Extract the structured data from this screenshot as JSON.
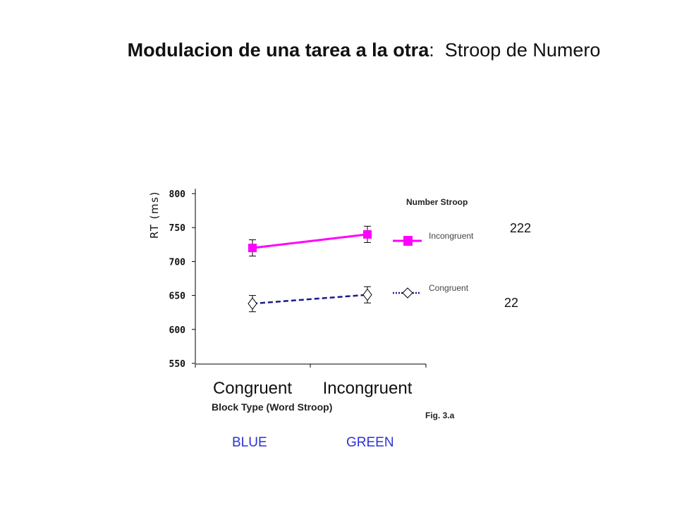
{
  "slide": {
    "title_bold": "Modulacion de una tarea a la otra",
    "title_colon": ":",
    "title_regular": "Stroop de Numero",
    "note_top": "222",
    "note_bottom": "22",
    "figure_label": "Fig. 3.a",
    "color_words": [
      "BLUE",
      "GREEN"
    ]
  },
  "chart_data": {
    "type": "line",
    "ylabel": "RT (ms)",
    "xlabel": "Block Type (Word Stroop)",
    "categories": [
      "Congruent",
      "Incongruent"
    ],
    "ylim": [
      550,
      800
    ],
    "yticks": [
      550,
      600,
      650,
      700,
      750,
      800
    ],
    "legend_title": "Number Stroop",
    "legend_position": "right",
    "grid": false,
    "series": [
      {
        "name": "Incongruent",
        "values": [
          720,
          740
        ],
        "error": [
          12,
          12
        ],
        "color": "#ff00ff",
        "marker": "filled-square",
        "line": "solid"
      },
      {
        "name": "Congruent",
        "values": [
          638,
          651
        ],
        "error": [
          12,
          12
        ],
        "color": "#1a1a8c",
        "marker": "open-diamond",
        "line": "dashed"
      }
    ]
  }
}
